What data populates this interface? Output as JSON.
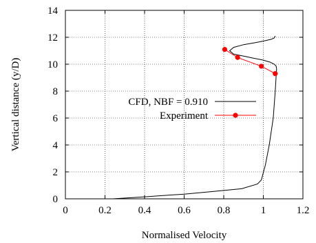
{
  "chart_data": {
    "type": "line",
    "title": "",
    "xlabel": "Normalised Velocity",
    "ylabel": "Vertical distance (y/D)",
    "xlim": [
      0,
      1.2
    ],
    "ylim": [
      0,
      14
    ],
    "xticks": [
      0,
      0.2,
      0.4,
      0.6,
      0.8,
      1,
      1.2
    ],
    "yticks": [
      0,
      2,
      4,
      6,
      8,
      10,
      12,
      14
    ],
    "xtick_labels": [
      "0",
      "0.2",
      "0.4",
      "0.6",
      "0.8",
      "1",
      "1.2"
    ],
    "ytick_labels": [
      "0",
      "2",
      "4",
      "6",
      "8",
      "10",
      "12",
      "14"
    ],
    "grid": true,
    "legend_position": "center-right",
    "series": [
      {
        "name": "CFD, NBF = 0.910",
        "color": "#000000",
        "marker": "none",
        "x": [
          0.24,
          0.4,
          0.6,
          0.75,
          0.89,
          0.97,
          0.99,
          1.01,
          1.03,
          1.05,
          1.06,
          1.065,
          1.067,
          1.065,
          1.055,
          1.035,
          1.0,
          0.95,
          0.9,
          0.85,
          0.83,
          0.85,
          0.9,
          0.96,
          1.01,
          1.04,
          1.055,
          1.06
        ],
        "y": [
          0,
          0.15,
          0.35,
          0.55,
          0.75,
          1.1,
          1.4,
          2.5,
          4.0,
          6.0,
          8.0,
          9.2,
          9.6,
          9.85,
          10.0,
          10.15,
          10.3,
          10.45,
          10.6,
          10.75,
          11.0,
          11.25,
          11.45,
          11.6,
          11.75,
          11.85,
          11.95,
          12.1
        ]
      },
      {
        "name": "Experiment",
        "color": "#ff0000",
        "marker": "circle",
        "x": [
          1.06,
          0.99,
          0.87,
          0.805
        ],
        "y": [
          9.3,
          9.85,
          10.5,
          11.1
        ]
      }
    ]
  }
}
